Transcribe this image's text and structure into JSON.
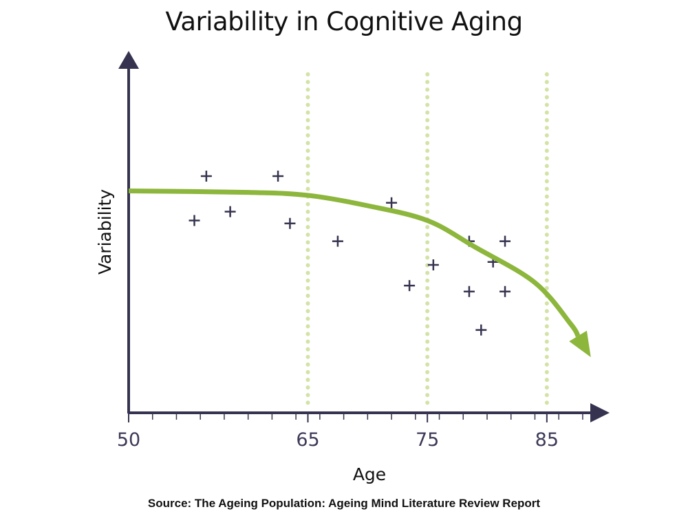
{
  "title": "Variability in Cognitive Aging",
  "source": "Source: The Ageing Population: Ageing Mind Literature Review Report",
  "colors": {
    "axis": "#35334f",
    "points": "#35334f",
    "trend": "#8cb63c",
    "gridlines": "#d3e3a6"
  },
  "chart_data": {
    "type": "scatter",
    "xlabel": "Age",
    "ylabel": "Variability",
    "xlim": [
      50,
      90
    ],
    "ylim": [
      0,
      100
    ],
    "x_ticks": [
      {
        "value": 50,
        "label": "50"
      },
      {
        "value": 65,
        "label": "65"
      },
      {
        "value": 75,
        "label": "75"
      },
      {
        "value": 85,
        "label": "85"
      }
    ],
    "minor_ticks": [
      52,
      54,
      56,
      58,
      60,
      62,
      64,
      66,
      68,
      70,
      72,
      74,
      76,
      78,
      80,
      82,
      84,
      86,
      88
    ],
    "vertical_gridlines": [
      65,
      75,
      85
    ],
    "points": [
      {
        "x": 56.5,
        "y": 80
      },
      {
        "x": 55.5,
        "y": 65
      },
      {
        "x": 58.5,
        "y": 68
      },
      {
        "x": 62.5,
        "y": 80
      },
      {
        "x": 63.5,
        "y": 64
      },
      {
        "x": 67.5,
        "y": 58
      },
      {
        "x": 72.0,
        "y": 71
      },
      {
        "x": 73.5,
        "y": 43
      },
      {
        "x": 75.5,
        "y": 50
      },
      {
        "x": 78.5,
        "y": 58
      },
      {
        "x": 78.5,
        "y": 41
      },
      {
        "x": 79.5,
        "y": 28
      },
      {
        "x": 80.5,
        "y": 51
      },
      {
        "x": 81.5,
        "y": 58
      },
      {
        "x": 81.5,
        "y": 41
      }
    ],
    "trend": [
      {
        "x": 50,
        "y": 75
      },
      {
        "x": 60,
        "y": 74.5
      },
      {
        "x": 65,
        "y": 73.5
      },
      {
        "x": 70,
        "y": 70
      },
      {
        "x": 75,
        "y": 65
      },
      {
        "x": 79,
        "y": 56
      },
      {
        "x": 84,
        "y": 44
      },
      {
        "x": 87,
        "y": 30
      },
      {
        "x": 88.5,
        "y": 20
      }
    ]
  }
}
